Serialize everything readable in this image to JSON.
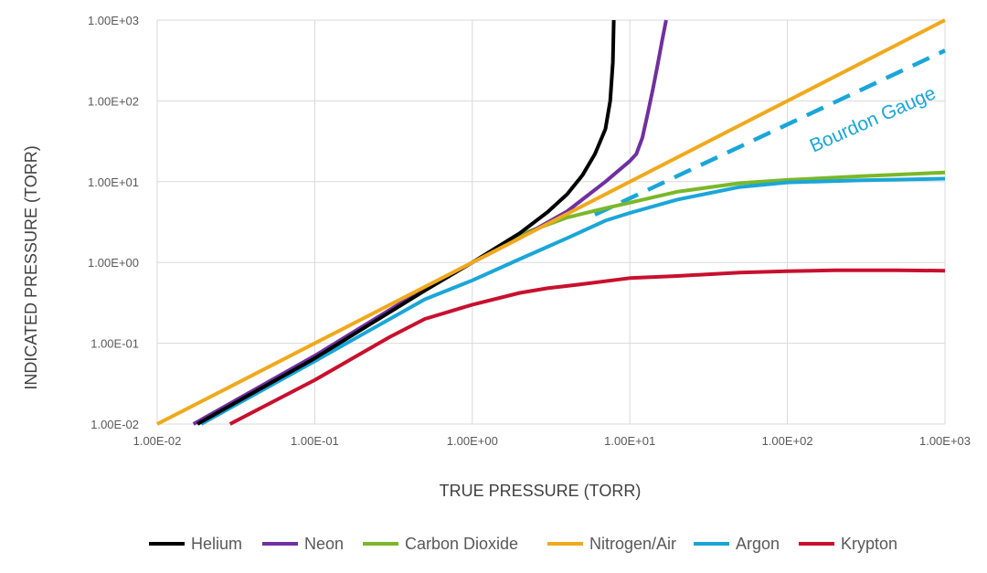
{
  "chart_data": {
    "type": "line",
    "title": "",
    "xlabel": "TRUE PRESSURE (TORR)",
    "ylabel": "INDICATED PRESSURE (TORR)",
    "xscale": "log",
    "yscale": "log",
    "xlim": [
      0.01,
      1000
    ],
    "ylim": [
      0.01,
      1000
    ],
    "grid": true,
    "legend_position": "bottom",
    "x_ticks": [
      {
        "value": 0.01,
        "label": "1.00E-02"
      },
      {
        "value": 0.1,
        "label": "1.00E-01"
      },
      {
        "value": 1,
        "label": "1.00E+00"
      },
      {
        "value": 10,
        "label": "1.00E+01"
      },
      {
        "value": 100,
        "label": "1.00E+02"
      },
      {
        "value": 1000,
        "label": "1.00E+03"
      }
    ],
    "y_ticks": [
      {
        "value": 0.01,
        "label": "1.00E-02"
      },
      {
        "value": 0.1,
        "label": "1.00E-01"
      },
      {
        "value": 1,
        "label": "1.00E+00"
      },
      {
        "value": 10,
        "label": "1.00E+01"
      },
      {
        "value": 100,
        "label": "1.00E+02"
      },
      {
        "value": 1000,
        "label": "1.00E+03"
      }
    ],
    "series": [
      {
        "name": "Helium",
        "color": "#000000",
        "points": [
          [
            0.018,
            0.01
          ],
          [
            0.1,
            0.065
          ],
          [
            0.5,
            0.45
          ],
          [
            1,
            1
          ],
          [
            2,
            2.3
          ],
          [
            3,
            4.2
          ],
          [
            4,
            7
          ],
          [
            5,
            12
          ],
          [
            6,
            22
          ],
          [
            7,
            45
          ],
          [
            7.5,
            100
          ],
          [
            7.8,
            300
          ],
          [
            7.9,
            1000
          ]
        ]
      },
      {
        "name": "Neon",
        "color": "#7030a0",
        "points": [
          [
            0.017,
            0.01
          ],
          [
            0.1,
            0.07
          ],
          [
            0.5,
            0.48
          ],
          [
            1,
            1
          ],
          [
            2,
            2
          ],
          [
            4,
            4.3
          ],
          [
            7,
            10
          ],
          [
            10,
            18
          ],
          [
            11,
            22
          ],
          [
            12,
            35
          ],
          [
            13,
            70
          ],
          [
            14,
            140
          ],
          [
            15,
            280
          ],
          [
            16,
            550
          ],
          [
            17,
            1000
          ]
        ]
      },
      {
        "name": "Carbon Dioxide",
        "color": "#7ab828",
        "points": [
          [
            1,
            1
          ],
          [
            2,
            2.2
          ],
          [
            4,
            3.6
          ],
          [
            7,
            4.7
          ],
          [
            10,
            5.5
          ],
          [
            20,
            7.5
          ],
          [
            50,
            9.6
          ],
          [
            100,
            10.5
          ],
          [
            300,
            11.7
          ],
          [
            1000,
            13
          ]
        ]
      },
      {
        "name": "Nitrogen/Air",
        "color": "#f0a91c",
        "points": [
          [
            0.01,
            0.01
          ],
          [
            1000,
            1000
          ]
        ]
      },
      {
        "name": "Argon",
        "color": "#1aa6d8",
        "points": [
          [
            0.019,
            0.01
          ],
          [
            0.1,
            0.06
          ],
          [
            0.5,
            0.35
          ],
          [
            1,
            0.6
          ],
          [
            2,
            1.1
          ],
          [
            4,
            2
          ],
          [
            7,
            3.3
          ],
          [
            10,
            4.1
          ],
          [
            20,
            6
          ],
          [
            50,
            8.6
          ],
          [
            100,
            9.8
          ],
          [
            300,
            10.4
          ],
          [
            1000,
            10.9
          ]
        ]
      },
      {
        "name": "Krypton",
        "color": "#c8102e",
        "points": [
          [
            0.029,
            0.01
          ],
          [
            0.1,
            0.035
          ],
          [
            0.3,
            0.12
          ],
          [
            0.5,
            0.2
          ],
          [
            1,
            0.3
          ],
          [
            2,
            0.42
          ],
          [
            3,
            0.48
          ],
          [
            5,
            0.54
          ],
          [
            10,
            0.64
          ],
          [
            20,
            0.68
          ],
          [
            50,
            0.75
          ],
          [
            100,
            0.78
          ],
          [
            200,
            0.8
          ],
          [
            500,
            0.8
          ],
          [
            1000,
            0.79
          ]
        ]
      }
    ],
    "reference_line": {
      "name": "Bourdon Gauge",
      "color": "#1aa6d8",
      "style": "dashed",
      "points": [
        [
          6,
          3.9
        ],
        [
          1000,
          420
        ]
      ]
    },
    "annotations": [
      {
        "text": "Bourdon Gauge",
        "color": "#1aa6d8"
      }
    ]
  }
}
